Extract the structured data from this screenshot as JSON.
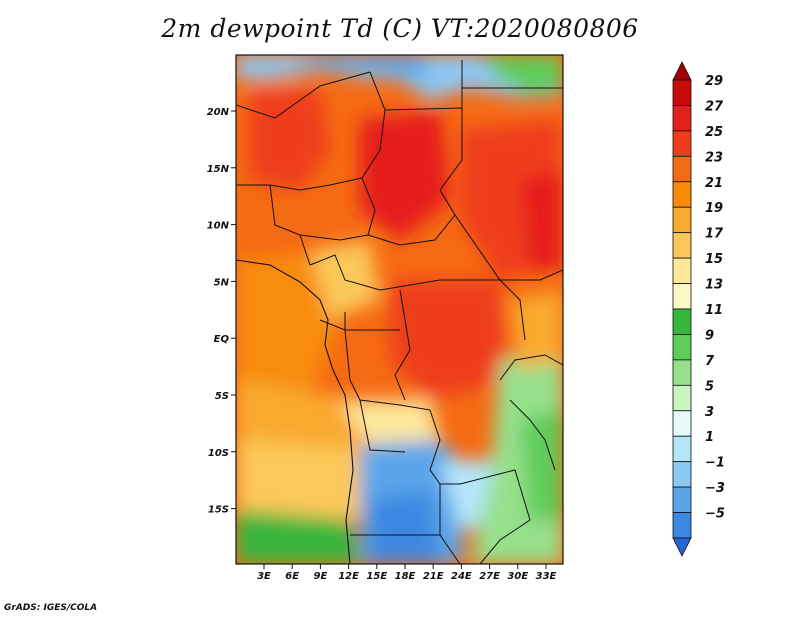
{
  "map": {
    "title": "2m dewpoint Td (C) VT:2020080806",
    "variable": "2m dewpoint",
    "units": "C",
    "valid_time": "2020080806",
    "lat_ticks": [
      "20N",
      "15N",
      "10N",
      "5N",
      "EQ",
      "5S",
      "10S",
      "15S"
    ],
    "lon_ticks": [
      "3E",
      "6E",
      "9E",
      "12E",
      "15E",
      "18E",
      "21E",
      "24E",
      "27E",
      "30E",
      "33E"
    ],
    "colorbar": {
      "labels": [
        "29",
        "27",
        "25",
        "23",
        "21",
        "19",
        "17",
        "15",
        "13",
        "11",
        "9",
        "7",
        "5",
        "3",
        "1",
        "-1",
        "-3",
        "-5"
      ],
      "colors": [
        "#a00000",
        "#c80a0a",
        "#e51e1e",
        "#ef3c1e",
        "#f56a14",
        "#f88c0a",
        "#f9aa2e",
        "#fbc85a",
        "#fde89c",
        "#fdf7c8",
        "#37b63c",
        "#5fcc5a",
        "#96e08c",
        "#c8f5c0",
        "#e6fafa",
        "#b4e6fa",
        "#8cc8f5",
        "#5aa5ea",
        "#3c87e1",
        "#2864d2"
      ]
    },
    "credit": "GrADS: IGES/COLA"
  }
}
